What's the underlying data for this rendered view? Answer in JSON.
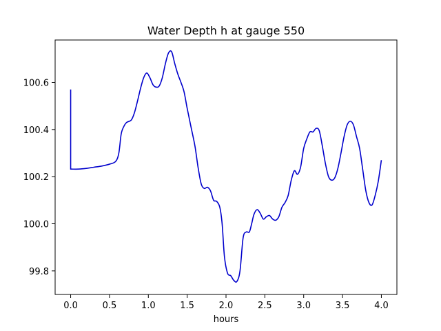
{
  "chart_data": {
    "type": "line",
    "title": "Water Depth h at gauge 550",
    "xlabel": "hours",
    "ylabel": "",
    "xlim": [
      -0.2,
      4.2
    ],
    "ylim": [
      99.7,
      100.78
    ],
    "xticks": [
      0.0,
      0.5,
      1.0,
      1.5,
      2.0,
      2.5,
      3.0,
      3.5,
      4.0
    ],
    "xtick_labels": [
      "0.0",
      "0.5",
      "1.0",
      "1.5",
      "2.0",
      "2.5",
      "3.0",
      "3.5",
      "4.0"
    ],
    "yticks": [
      99.8,
      100.0,
      100.2,
      100.4,
      100.6
    ],
    "ytick_labels": [
      "99.8",
      "100.0",
      "100.2",
      "100.4",
      "100.6"
    ],
    "grid": false,
    "legend": "none",
    "series": [
      {
        "color": "#0000cc",
        "x": [
          0.0,
          0.0,
          0.01,
          0.1,
          0.2,
          0.3,
          0.4,
          0.5,
          0.58,
          0.62,
          0.65,
          0.68,
          0.72,
          0.78,
          0.82,
          0.86,
          0.9,
          0.94,
          0.98,
          1.02,
          1.06,
          1.1,
          1.14,
          1.18,
          1.22,
          1.26,
          1.3,
          1.34,
          1.38,
          1.42,
          1.46,
          1.5,
          1.55,
          1.6,
          1.64,
          1.68,
          1.72,
          1.76,
          1.8,
          1.84,
          1.88,
          1.92,
          1.95,
          1.98,
          2.02,
          2.06,
          2.1,
          2.14,
          2.18,
          2.22,
          2.26,
          2.3,
          2.33,
          2.36,
          2.4,
          2.44,
          2.48,
          2.52,
          2.56,
          2.6,
          2.64,
          2.68,
          2.72,
          2.76,
          2.8,
          2.84,
          2.88,
          2.92,
          2.96,
          3.0,
          3.04,
          3.08,
          3.12,
          3.16,
          3.2,
          3.24,
          3.28,
          3.32,
          3.36,
          3.4,
          3.44,
          3.48,
          3.52,
          3.56,
          3.6,
          3.64,
          3.68,
          3.72,
          3.76,
          3.8,
          3.84,
          3.88,
          3.92,
          3.96,
          4.0
        ],
        "y": [
          100.57,
          100.232,
          100.232,
          100.232,
          100.235,
          100.24,
          100.245,
          100.253,
          100.265,
          100.3,
          100.38,
          100.41,
          100.43,
          100.44,
          100.47,
          100.52,
          100.575,
          100.62,
          100.64,
          100.62,
          100.59,
          100.58,
          100.585,
          100.62,
          100.68,
          100.725,
          100.73,
          100.68,
          100.635,
          100.6,
          100.56,
          100.49,
          100.41,
          100.33,
          100.24,
          100.17,
          100.15,
          100.155,
          100.14,
          100.1,
          100.095,
          100.07,
          100.0,
          99.86,
          99.79,
          99.78,
          99.76,
          99.755,
          99.8,
          99.94,
          99.965,
          99.965,
          100.0,
          100.04,
          100.06,
          100.045,
          100.02,
          100.03,
          100.035,
          100.02,
          100.015,
          100.03,
          100.07,
          100.09,
          100.12,
          100.185,
          100.225,
          100.21,
          100.24,
          100.32,
          100.36,
          100.39,
          100.39,
          100.405,
          100.395,
          100.33,
          100.255,
          100.2,
          100.185,
          100.195,
          100.235,
          100.3,
          100.37,
          100.42,
          100.435,
          100.42,
          100.37,
          100.32,
          100.23,
          100.14,
          100.09,
          100.08,
          100.12,
          100.18,
          100.27
        ]
      }
    ]
  }
}
